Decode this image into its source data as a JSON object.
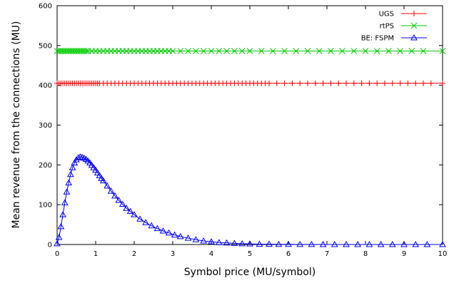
{
  "chart_data": {
    "type": "line",
    "xlabel": "Symbol price (MU/symbol)",
    "ylabel": "Mean revenue from the connections (MU)",
    "xlim": [
      0,
      10
    ],
    "ylim": [
      0,
      600
    ],
    "xticks": [
      "0",
      "1",
      "2",
      "3",
      "4",
      "5",
      "6",
      "7",
      "8",
      "9",
      "10"
    ],
    "yticks": [
      "0",
      "100",
      "200",
      "300",
      "400",
      "500",
      "600"
    ],
    "grid": false,
    "legend_position": "top-right",
    "series": [
      {
        "name": "UGS",
        "color": "#ff0000",
        "marker": "plus",
        "x": [
          0,
          0.05,
          0.1,
          0.15,
          0.2,
          0.25,
          0.3,
          0.35,
          0.4,
          0.45,
          0.5,
          0.55,
          0.6,
          0.65,
          0.7,
          0.75,
          0.8,
          0.85,
          0.9,
          0.95,
          1.0,
          1.05,
          1.1,
          1.2,
          1.3,
          1.4,
          1.5,
          1.6,
          1.7,
          1.8,
          1.9,
          2.0,
          2.1,
          2.2,
          2.3,
          2.4,
          2.5,
          2.6,
          2.7,
          2.8,
          2.9,
          3.0,
          3.1,
          3.2,
          3.3,
          3.4,
          3.5,
          3.6,
          3.7,
          3.8,
          3.9,
          4.0,
          4.1,
          4.2,
          4.3,
          4.4,
          4.5,
          4.6,
          4.7,
          4.8,
          4.9,
          5.0,
          5.1,
          5.2,
          5.3,
          5.4,
          5.5,
          5.7,
          5.9,
          6.1,
          6.3,
          6.5,
          6.7,
          6.9,
          7.1,
          7.3,
          7.5,
          7.7,
          7.9,
          8.1,
          8.3,
          8.5,
          8.7,
          8.9,
          9.1,
          9.3,
          9.5,
          9.7,
          10.0
        ],
        "y": [
          405,
          405,
          405,
          405,
          405,
          405,
          405,
          405,
          405,
          405,
          405,
          405,
          405,
          405,
          405,
          405,
          405,
          405,
          405,
          405,
          405,
          405,
          405,
          405,
          405,
          405,
          405,
          405,
          405,
          405,
          405,
          405,
          405,
          405,
          405,
          405,
          405,
          405,
          405,
          405,
          405,
          405,
          405,
          405,
          405,
          405,
          405,
          405,
          405,
          405,
          405,
          405,
          405,
          405,
          405,
          405,
          405,
          405,
          405,
          405,
          405,
          405,
          405,
          405,
          405,
          405,
          405,
          405,
          405,
          405,
          405,
          405,
          405,
          405,
          405,
          405,
          405,
          405,
          405,
          405,
          405,
          405,
          405,
          405,
          405,
          405,
          405,
          405,
          405
        ]
      },
      {
        "name": "rtPS",
        "color": "#00cc00",
        "marker": "cross",
        "x": [
          0,
          0.05,
          0.1,
          0.15,
          0.2,
          0.25,
          0.3,
          0.35,
          0.4,
          0.45,
          0.5,
          0.55,
          0.6,
          0.65,
          0.7,
          0.75,
          0.8,
          0.9,
          1.0,
          1.1,
          1.2,
          1.3,
          1.4,
          1.5,
          1.6,
          1.7,
          1.8,
          1.9,
          2.0,
          2.1,
          2.2,
          2.3,
          2.4,
          2.5,
          2.6,
          2.7,
          2.8,
          2.9,
          3.0,
          3.2,
          3.4,
          3.6,
          3.8,
          4.0,
          4.2,
          4.4,
          4.6,
          4.8,
          5.0,
          5.3,
          5.6,
          5.9,
          6.2,
          6.5,
          6.8,
          7.1,
          7.4,
          7.7,
          8.0,
          8.3,
          8.6,
          8.9,
          9.2,
          9.5,
          10.0
        ],
        "y": [
          486,
          486,
          486,
          486,
          486,
          486,
          486,
          486,
          486,
          486,
          486,
          486,
          486,
          486,
          486,
          486,
          486,
          486,
          486,
          486,
          486,
          486,
          486,
          486,
          486,
          486,
          486,
          486,
          486,
          486,
          486,
          486,
          486,
          486,
          486,
          486,
          486,
          486,
          486,
          486,
          486,
          486,
          486,
          486,
          486,
          486,
          486,
          486,
          486,
          486,
          486,
          486,
          486,
          486,
          486,
          486,
          486,
          486,
          486,
          486,
          486,
          486,
          486,
          486,
          486
        ]
      },
      {
        "name": "BE: FSPM",
        "color": "#0000ff",
        "marker": "triangle",
        "x": [
          0,
          0.05,
          0.1,
          0.15,
          0.2,
          0.25,
          0.3,
          0.35,
          0.4,
          0.45,
          0.5,
          0.55,
          0.6,
          0.65,
          0.7,
          0.75,
          0.8,
          0.85,
          0.9,
          0.95,
          1.0,
          1.05,
          1.1,
          1.15,
          1.2,
          1.3,
          1.4,
          1.5,
          1.6,
          1.7,
          1.8,
          1.9,
          2.0,
          2.15,
          2.3,
          2.45,
          2.6,
          2.75,
          2.9,
          3.05,
          3.2,
          3.4,
          3.6,
          3.8,
          4.0,
          4.2,
          4.4,
          4.6,
          4.8,
          5.0,
          5.25,
          5.5,
          5.75,
          6.0,
          6.3,
          6.6,
          6.9,
          7.2,
          7.5,
          7.8,
          8.1,
          8.4,
          8.7,
          9.0,
          9.3,
          9.6,
          10.0
        ],
        "y": [
          2,
          18,
          45,
          75,
          105,
          132,
          155,
          176,
          193,
          205,
          213,
          218,
          220,
          219,
          217,
          214,
          210,
          205,
          199,
          193,
          187,
          180,
          173,
          166,
          160,
          147,
          134,
          122,
          111,
          101,
          91,
          83,
          75,
          64,
          55,
          47,
          40,
          34,
          29,
          24,
          20,
          16,
          12,
          9,
          7,
          5,
          4,
          3,
          2,
          1.5,
          1,
          1,
          0.5,
          0.5,
          0.3,
          0.2,
          0.1,
          0,
          0,
          0,
          0,
          0,
          0,
          0,
          0,
          0,
          0
        ]
      }
    ]
  }
}
